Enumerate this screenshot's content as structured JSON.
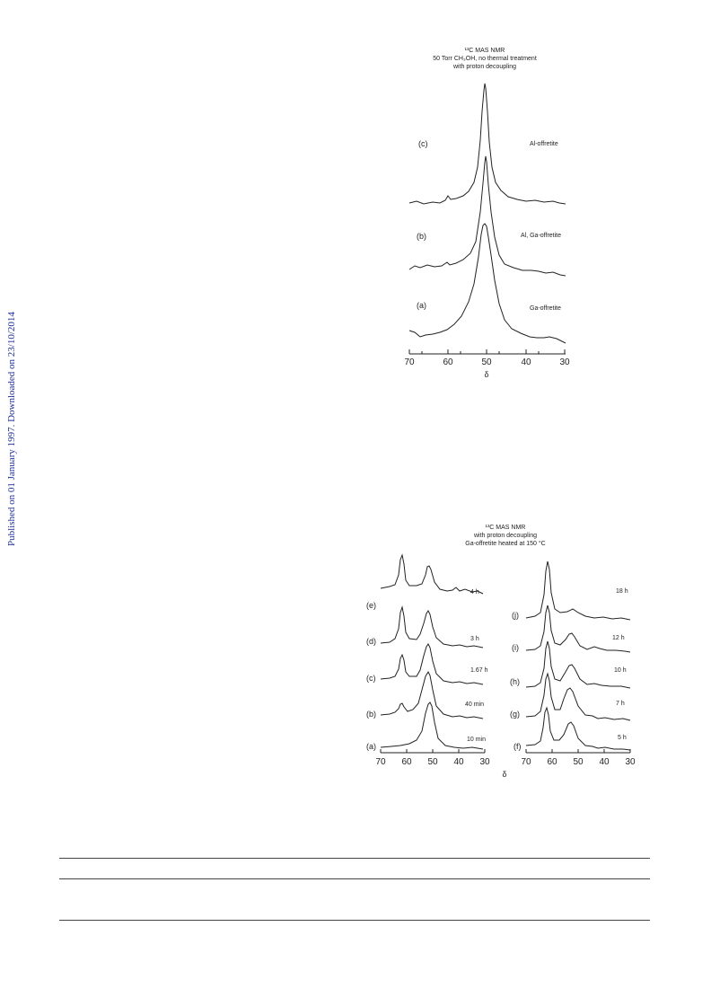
{
  "side_note": "Published on 01 January 1997. Downloaded on 23/10/2014 16:49:47.",
  "figure1": {
    "title": [
      "¹³C MAS NMR",
      "50 Torr CH₃OH, no thermal treatment",
      "with proton decoupling"
    ],
    "xlabel": "δ",
    "ticks": [
      "70",
      "60",
      "50",
      "40",
      "30"
    ],
    "traces": [
      {
        "tag": "(c)",
        "sample": "Al-offretite"
      },
      {
        "tag": "(b)",
        "sample": "Al, Ga-offretite"
      },
      {
        "tag": "(a)",
        "sample": "Ga-offretite"
      }
    ]
  },
  "figure2": {
    "title": [
      "¹³C MAS NMR",
      "with proton decoupling",
      "Ga-offretite heated at 150 °C"
    ],
    "xlabel": "δ",
    "left_ticks": [
      "70",
      "60",
      "50",
      "40",
      "30"
    ],
    "right_ticks": [
      "70",
      "60",
      "50",
      "40",
      "30"
    ],
    "left_traces": [
      {
        "tag": "(e)",
        "time": "4 h"
      },
      {
        "tag": "(d)",
        "time": "3 h"
      },
      {
        "tag": "(c)",
        "time": "1.67 h"
      },
      {
        "tag": "(b)",
        "time": "40 min"
      },
      {
        "tag": "(a)",
        "time": "10 min"
      }
    ],
    "right_traces": [
      {
        "tag": "(j)",
        "time": "18 h"
      },
      {
        "tag": "(i)",
        "time": "12 h"
      },
      {
        "tag": "(h)",
        "time": "10 h"
      },
      {
        "tag": "(g)",
        "time": "7 h"
      },
      {
        "tag": "(f)",
        "time": "5 h"
      }
    ]
  }
}
